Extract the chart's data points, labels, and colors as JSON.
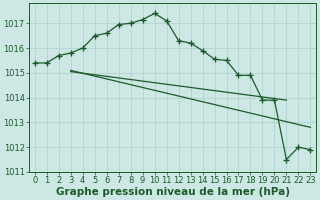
{
  "background_color": "#cde8e4",
  "grid_color": "#b0d4ce",
  "line_color": "#1a5c28",
  "xlabel": "Graphe pression niveau de la mer (hPa)",
  "xlim": [
    -0.5,
    23.5
  ],
  "ylim": [
    1011.0,
    1017.8
  ],
  "yticks": [
    1011,
    1012,
    1013,
    1014,
    1015,
    1016,
    1017
  ],
  "xticks": [
    0,
    1,
    2,
    3,
    4,
    5,
    6,
    7,
    8,
    9,
    10,
    11,
    12,
    13,
    14,
    15,
    16,
    17,
    18,
    19,
    20,
    21,
    22,
    23
  ],
  "series1_x": [
    0,
    1,
    2,
    3,
    4,
    5,
    6,
    7,
    8,
    9,
    10,
    11,
    12,
    13,
    14,
    15,
    16,
    17,
    18,
    19,
    20,
    21,
    22,
    23
  ],
  "series1_y": [
    1015.4,
    1015.4,
    1015.7,
    1015.8,
    1016.0,
    1016.5,
    1016.6,
    1016.95,
    1017.0,
    1017.15,
    1017.4,
    1017.1,
    1016.3,
    1016.2,
    1015.9,
    1015.55,
    1015.5,
    1014.9,
    1014.9,
    1013.9,
    1013.9,
    1011.5,
    1012.0,
    1011.9
  ],
  "series2_x": [
    3,
    23
  ],
  "series2_y": [
    1015.1,
    1012.8
  ],
  "series3_x": [
    3,
    21
  ],
  "series3_y": [
    1015.05,
    1013.9
  ],
  "xlabel_fontsize": 7.5,
  "tick_fontsize": 6,
  "lw": 0.9
}
